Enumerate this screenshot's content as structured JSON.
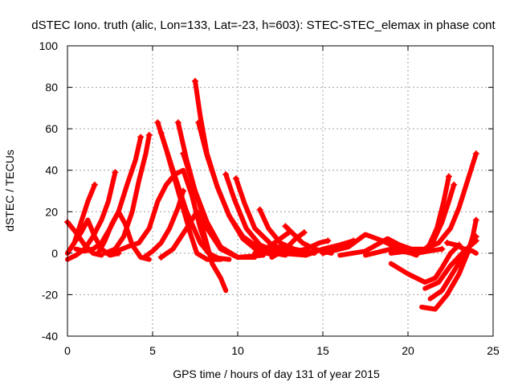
{
  "chart_data": {
    "type": "line",
    "title": "dSTEC Iono. truth (alic, Lon=133, Lat=-23, h=603): STEC-STEC_elemax in phase cont",
    "xlabel": "GPS time / hours of day 131 of year 2015",
    "ylabel": "dSTEC  / TECUs",
    "xlim": [
      0,
      25
    ],
    "ylim": [
      -40,
      100
    ],
    "xticks": [
      0,
      5,
      10,
      15,
      20,
      25
    ],
    "yticks": [
      -40,
      -20,
      0,
      20,
      40,
      60,
      80,
      100
    ],
    "grid": true,
    "legend": "none",
    "color": "#ff0000",
    "series": [
      {
        "points": [
          [
            0.0,
            15
          ],
          [
            0.5,
            10
          ],
          [
            1.0,
            4
          ],
          [
            1.5,
            0
          ],
          [
            2.0,
            -1
          ]
        ]
      },
      {
        "points": [
          [
            0.0,
            0
          ],
          [
            0.4,
            5
          ],
          [
            0.8,
            15
          ],
          [
            1.2,
            25
          ],
          [
            1.6,
            33
          ]
        ]
      },
      {
        "points": [
          [
            0.0,
            -3
          ],
          [
            0.5,
            -1
          ],
          [
            1.0,
            2
          ],
          [
            1.5,
            8
          ],
          [
            2.0,
            16
          ],
          [
            2.4,
            25
          ],
          [
            2.8,
            39
          ]
        ]
      },
      {
        "points": [
          [
            0.0,
            0
          ],
          [
            0.8,
            10
          ],
          [
            1.2,
            16
          ],
          [
            1.6,
            8
          ],
          [
            2.0,
            2
          ],
          [
            2.5,
            -1
          ],
          [
            3.0,
            0
          ]
        ]
      },
      {
        "points": [
          [
            0.5,
            2
          ],
          [
            1.0,
            1
          ],
          [
            1.5,
            2
          ],
          [
            2.0,
            5
          ],
          [
            2.5,
            12
          ],
          [
            3.0,
            20
          ],
          [
            3.5,
            33
          ],
          [
            4.0,
            45
          ],
          [
            4.3,
            56
          ]
        ]
      },
      {
        "points": [
          [
            1.8,
            0
          ],
          [
            2.2,
            6
          ],
          [
            2.6,
            14
          ],
          [
            3.0,
            20
          ],
          [
            3.4,
            14
          ],
          [
            3.8,
            4
          ],
          [
            4.3,
            -2
          ],
          [
            4.8,
            -3
          ]
        ]
      },
      {
        "points": [
          [
            2.2,
            0
          ],
          [
            2.8,
            2
          ],
          [
            3.3,
            8
          ],
          [
            3.8,
            20
          ],
          [
            4.2,
            35
          ],
          [
            4.6,
            48
          ],
          [
            4.8,
            57
          ]
        ]
      },
      {
        "points": [
          [
            2.6,
            0
          ],
          [
            3.5,
            3
          ],
          [
            4.2,
            5
          ],
          [
            4.8,
            12
          ],
          [
            5.3,
            25
          ],
          [
            5.8,
            33
          ],
          [
            6.3,
            38
          ],
          [
            6.8,
            40
          ],
          [
            7.3,
            28
          ],
          [
            7.8,
            12
          ],
          [
            8.3,
            0
          ],
          [
            9.0,
            -3
          ]
        ]
      },
      {
        "points": [
          [
            4.5,
            -2
          ],
          [
            5.0,
            1
          ],
          [
            5.5,
            5
          ],
          [
            6.0,
            12
          ],
          [
            6.5,
            22
          ],
          [
            6.8,
            30
          ]
        ]
      },
      {
        "points": [
          [
            5.3,
            63
          ],
          [
            5.8,
            50
          ],
          [
            6.5,
            30
          ],
          [
            7.2,
            10
          ],
          [
            7.6,
            0
          ],
          [
            8.2,
            -3
          ],
          [
            9.0,
            -3
          ]
        ]
      },
      {
        "points": [
          [
            5.5,
            58
          ],
          [
            6.2,
            40
          ],
          [
            7.0,
            20
          ],
          [
            7.8,
            5
          ],
          [
            8.5,
            -2
          ],
          [
            9.5,
            -3
          ]
        ]
      },
      {
        "points": [
          [
            6.5,
            63
          ],
          [
            7.0,
            45
          ],
          [
            7.5,
            30
          ],
          [
            8.2,
            12
          ],
          [
            9.0,
            2
          ],
          [
            10.0,
            -2
          ],
          [
            11.0,
            -2
          ]
        ]
      },
      {
        "points": [
          [
            6.8,
            48
          ],
          [
            7.5,
            30
          ],
          [
            8.2,
            15
          ],
          [
            9.0,
            3
          ],
          [
            10.0,
            -2
          ],
          [
            11.5,
            -1
          ]
        ]
      },
      {
        "points": [
          [
            5.5,
            -2
          ],
          [
            6.2,
            2
          ],
          [
            7.0,
            12
          ],
          [
            7.6,
            20
          ],
          [
            8.0,
            10
          ],
          [
            8.5,
            -5
          ],
          [
            9.0,
            -12
          ],
          [
            9.3,
            -18
          ]
        ]
      },
      {
        "points": [
          [
            7.5,
            83
          ],
          [
            7.8,
            66
          ],
          [
            8.2,
            48
          ],
          [
            8.8,
            32
          ],
          [
            9.5,
            18
          ],
          [
            10.3,
            7
          ],
          [
            11.2,
            1
          ],
          [
            12.2,
            -1
          ]
        ]
      },
      {
        "points": [
          [
            7.7,
            63
          ],
          [
            8.2,
            47
          ],
          [
            8.8,
            32
          ],
          [
            9.5,
            18
          ],
          [
            10.3,
            8
          ],
          [
            11.5,
            1
          ],
          [
            12.8,
            -1
          ]
        ]
      },
      {
        "points": [
          [
            9.3,
            38
          ],
          [
            9.8,
            26
          ],
          [
            10.5,
            12
          ],
          [
            11.3,
            4
          ],
          [
            12.5,
            0
          ],
          [
            14.0,
            -1
          ]
        ]
      },
      {
        "points": [
          [
            9.9,
            36
          ],
          [
            10.4,
            24
          ],
          [
            11.0,
            12
          ],
          [
            12.0,
            4
          ],
          [
            13.0,
            1
          ],
          [
            14.5,
            0
          ]
        ]
      },
      {
        "points": [
          [
            11.3,
            21
          ],
          [
            11.8,
            12
          ],
          [
            12.5,
            5
          ],
          [
            13.3,
            2
          ],
          [
            14.5,
            0
          ]
        ]
      },
      {
        "points": [
          [
            11.0,
            0
          ],
          [
            11.8,
            3
          ],
          [
            12.5,
            7
          ],
          [
            13.0,
            10
          ]
        ]
      },
      {
        "points": [
          [
            12.8,
            13
          ],
          [
            13.3,
            9
          ],
          [
            13.8,
            5
          ],
          [
            14.5,
            2
          ],
          [
            15.5,
            0
          ]
        ]
      },
      {
        "points": [
          [
            12.0,
            -2
          ],
          [
            12.8,
            2
          ],
          [
            13.4,
            7
          ],
          [
            13.9,
            10
          ]
        ]
      },
      {
        "points": [
          [
            13.0,
            0
          ],
          [
            14.0,
            2
          ],
          [
            14.8,
            5
          ],
          [
            15.3,
            6
          ]
        ]
      },
      {
        "points": [
          [
            14.0,
            -1
          ],
          [
            15.0,
            2
          ],
          [
            16.0,
            4
          ],
          [
            16.8,
            6
          ]
        ]
      },
      {
        "points": [
          [
            15.0,
            0
          ],
          [
            16.5,
            3
          ],
          [
            17.5,
            9
          ],
          [
            18.5,
            6
          ],
          [
            19.5,
            2
          ],
          [
            20.5,
            -1
          ]
        ]
      },
      {
        "points": [
          [
            16.0,
            -1
          ],
          [
            17.5,
            1
          ],
          [
            18.8,
            7
          ],
          [
            19.5,
            4
          ],
          [
            20.2,
            2
          ],
          [
            21.0,
            2
          ]
        ]
      },
      {
        "points": [
          [
            17.5,
            -1
          ],
          [
            19.0,
            2
          ],
          [
            19.8,
            2
          ],
          [
            20.5,
            0
          ],
          [
            21.2,
            1
          ],
          [
            22.0,
            2
          ]
        ]
      },
      {
        "points": [
          [
            19.0,
            0
          ],
          [
            20.0,
            1
          ],
          [
            20.6,
            0
          ],
          [
            21.2,
            3
          ],
          [
            21.7,
            12
          ],
          [
            22.1,
            25
          ],
          [
            22.4,
            37
          ]
        ]
      },
      {
        "points": [
          [
            19.5,
            1
          ],
          [
            20.3,
            0
          ],
          [
            20.9,
            1
          ],
          [
            21.5,
            6
          ],
          [
            22.0,
            15
          ],
          [
            22.4,
            25
          ],
          [
            22.7,
            33
          ]
        ]
      },
      {
        "points": [
          [
            19.0,
            -5
          ],
          [
            20.0,
            -10
          ],
          [
            21.0,
            -14
          ],
          [
            21.6,
            -12
          ],
          [
            22.0,
            -7
          ],
          [
            22.5,
            0
          ],
          [
            23.0,
            4
          ]
        ]
      },
      {
        "points": [
          [
            21.0,
            -17
          ],
          [
            21.8,
            -14
          ],
          [
            22.5,
            -6
          ],
          [
            23.3,
            1
          ],
          [
            24.0,
            6
          ]
        ]
      },
      {
        "points": [
          [
            21.3,
            -22
          ],
          [
            22.0,
            -18
          ],
          [
            22.6,
            -10
          ],
          [
            23.2,
            -2
          ],
          [
            23.6,
            3
          ],
          [
            24.0,
            8
          ]
        ]
      },
      {
        "points": [
          [
            20.8,
            -26
          ],
          [
            21.6,
            -27
          ],
          [
            22.3,
            -20
          ],
          [
            23.0,
            -10
          ],
          [
            23.5,
            0
          ],
          [
            23.8,
            8
          ],
          [
            24.0,
            16
          ]
        ]
      },
      {
        "points": [
          [
            22.3,
            5
          ],
          [
            22.8,
            4
          ],
          [
            23.3,
            2
          ],
          [
            23.8,
            1
          ],
          [
            24.0,
            0
          ]
        ]
      },
      {
        "points": [
          [
            21.0,
            2
          ],
          [
            21.8,
            5
          ],
          [
            22.5,
            12
          ],
          [
            23.0,
            22
          ],
          [
            23.5,
            35
          ],
          [
            24.0,
            48
          ]
        ]
      }
    ]
  }
}
